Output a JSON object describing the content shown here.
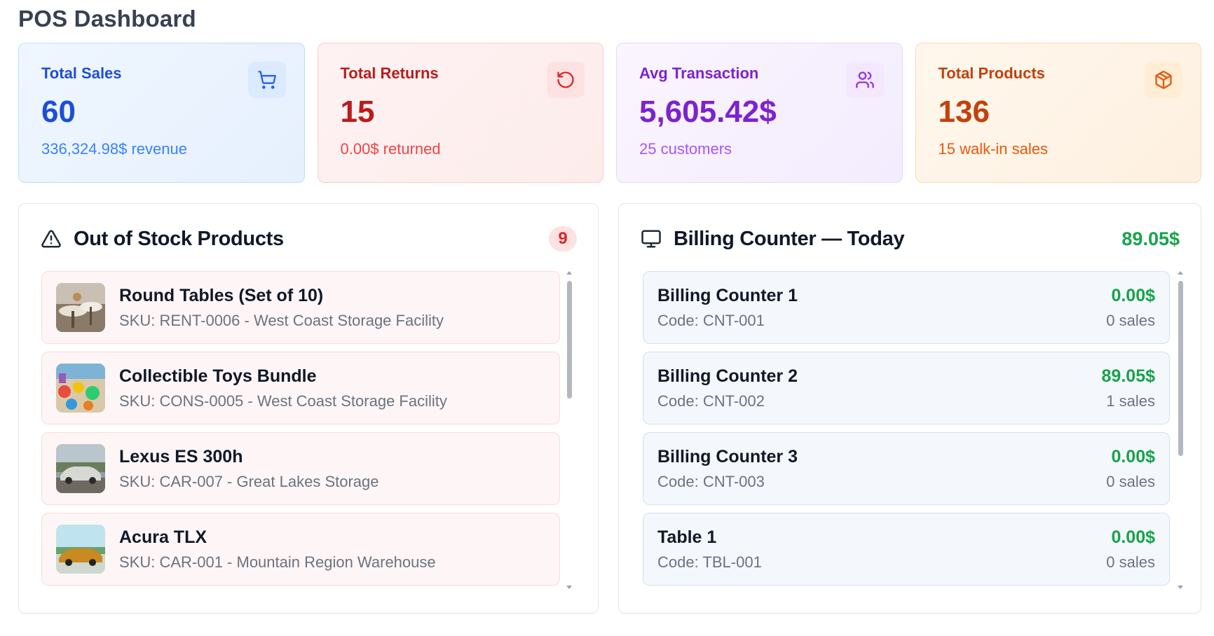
{
  "page": {
    "title": "POS Dashboard"
  },
  "stats": [
    {
      "label": "Total Sales",
      "value": "60",
      "sub": "336,324.98$ revenue",
      "icon": "shopping-cart-icon",
      "color": "#1d4ed8"
    },
    {
      "label": "Total Returns",
      "value": "15",
      "sub": "0.00$ returned",
      "icon": "rotate-ccw-icon",
      "color": "#b91c1c"
    },
    {
      "label": "Avg Transaction",
      "value": "5,605.42$",
      "sub": "25 customers",
      "icon": "users-icon",
      "color": "#7e22ce"
    },
    {
      "label": "Total Products",
      "value": "136",
      "sub": "15 walk-in sales",
      "icon": "package-icon",
      "color": "#c2410c"
    }
  ],
  "out_of_stock": {
    "title": "Out of Stock Products",
    "icon": "alert-triangle-icon",
    "count": "9",
    "items": [
      {
        "name": "Round Tables (Set of 10)",
        "meta": "SKU: RENT-0006 - West Coast Storage Facility",
        "thumb": "round-tables-photo"
      },
      {
        "name": "Collectible Toys Bundle",
        "meta": "SKU: CONS-0005 - West Coast Storage Facility",
        "thumb": "toys-bundle-photo"
      },
      {
        "name": "Lexus ES 300h",
        "meta": "SKU: CAR-007 - Great Lakes Storage",
        "thumb": "lexus-car-photo"
      },
      {
        "name": "Acura TLX",
        "meta": "SKU: CAR-001 - Mountain Region Warehouse",
        "thumb": "acura-car-photo"
      }
    ]
  },
  "billing": {
    "title": "Billing Counter — Today",
    "icon": "monitor-icon",
    "total": "89.05$",
    "items": [
      {
        "name": "Billing Counter 1",
        "code": "Code: CNT-001",
        "amount": "0.00$",
        "sales": "0 sales"
      },
      {
        "name": "Billing Counter 2",
        "code": "Code: CNT-002",
        "amount": "89.05$",
        "sales": "1 sales"
      },
      {
        "name": "Billing Counter 3",
        "code": "Code: CNT-003",
        "amount": "0.00$",
        "sales": "0 sales"
      },
      {
        "name": "Table 1",
        "code": "Code: TBL-001",
        "amount": "0.00$",
        "sales": "0 sales"
      }
    ]
  }
}
